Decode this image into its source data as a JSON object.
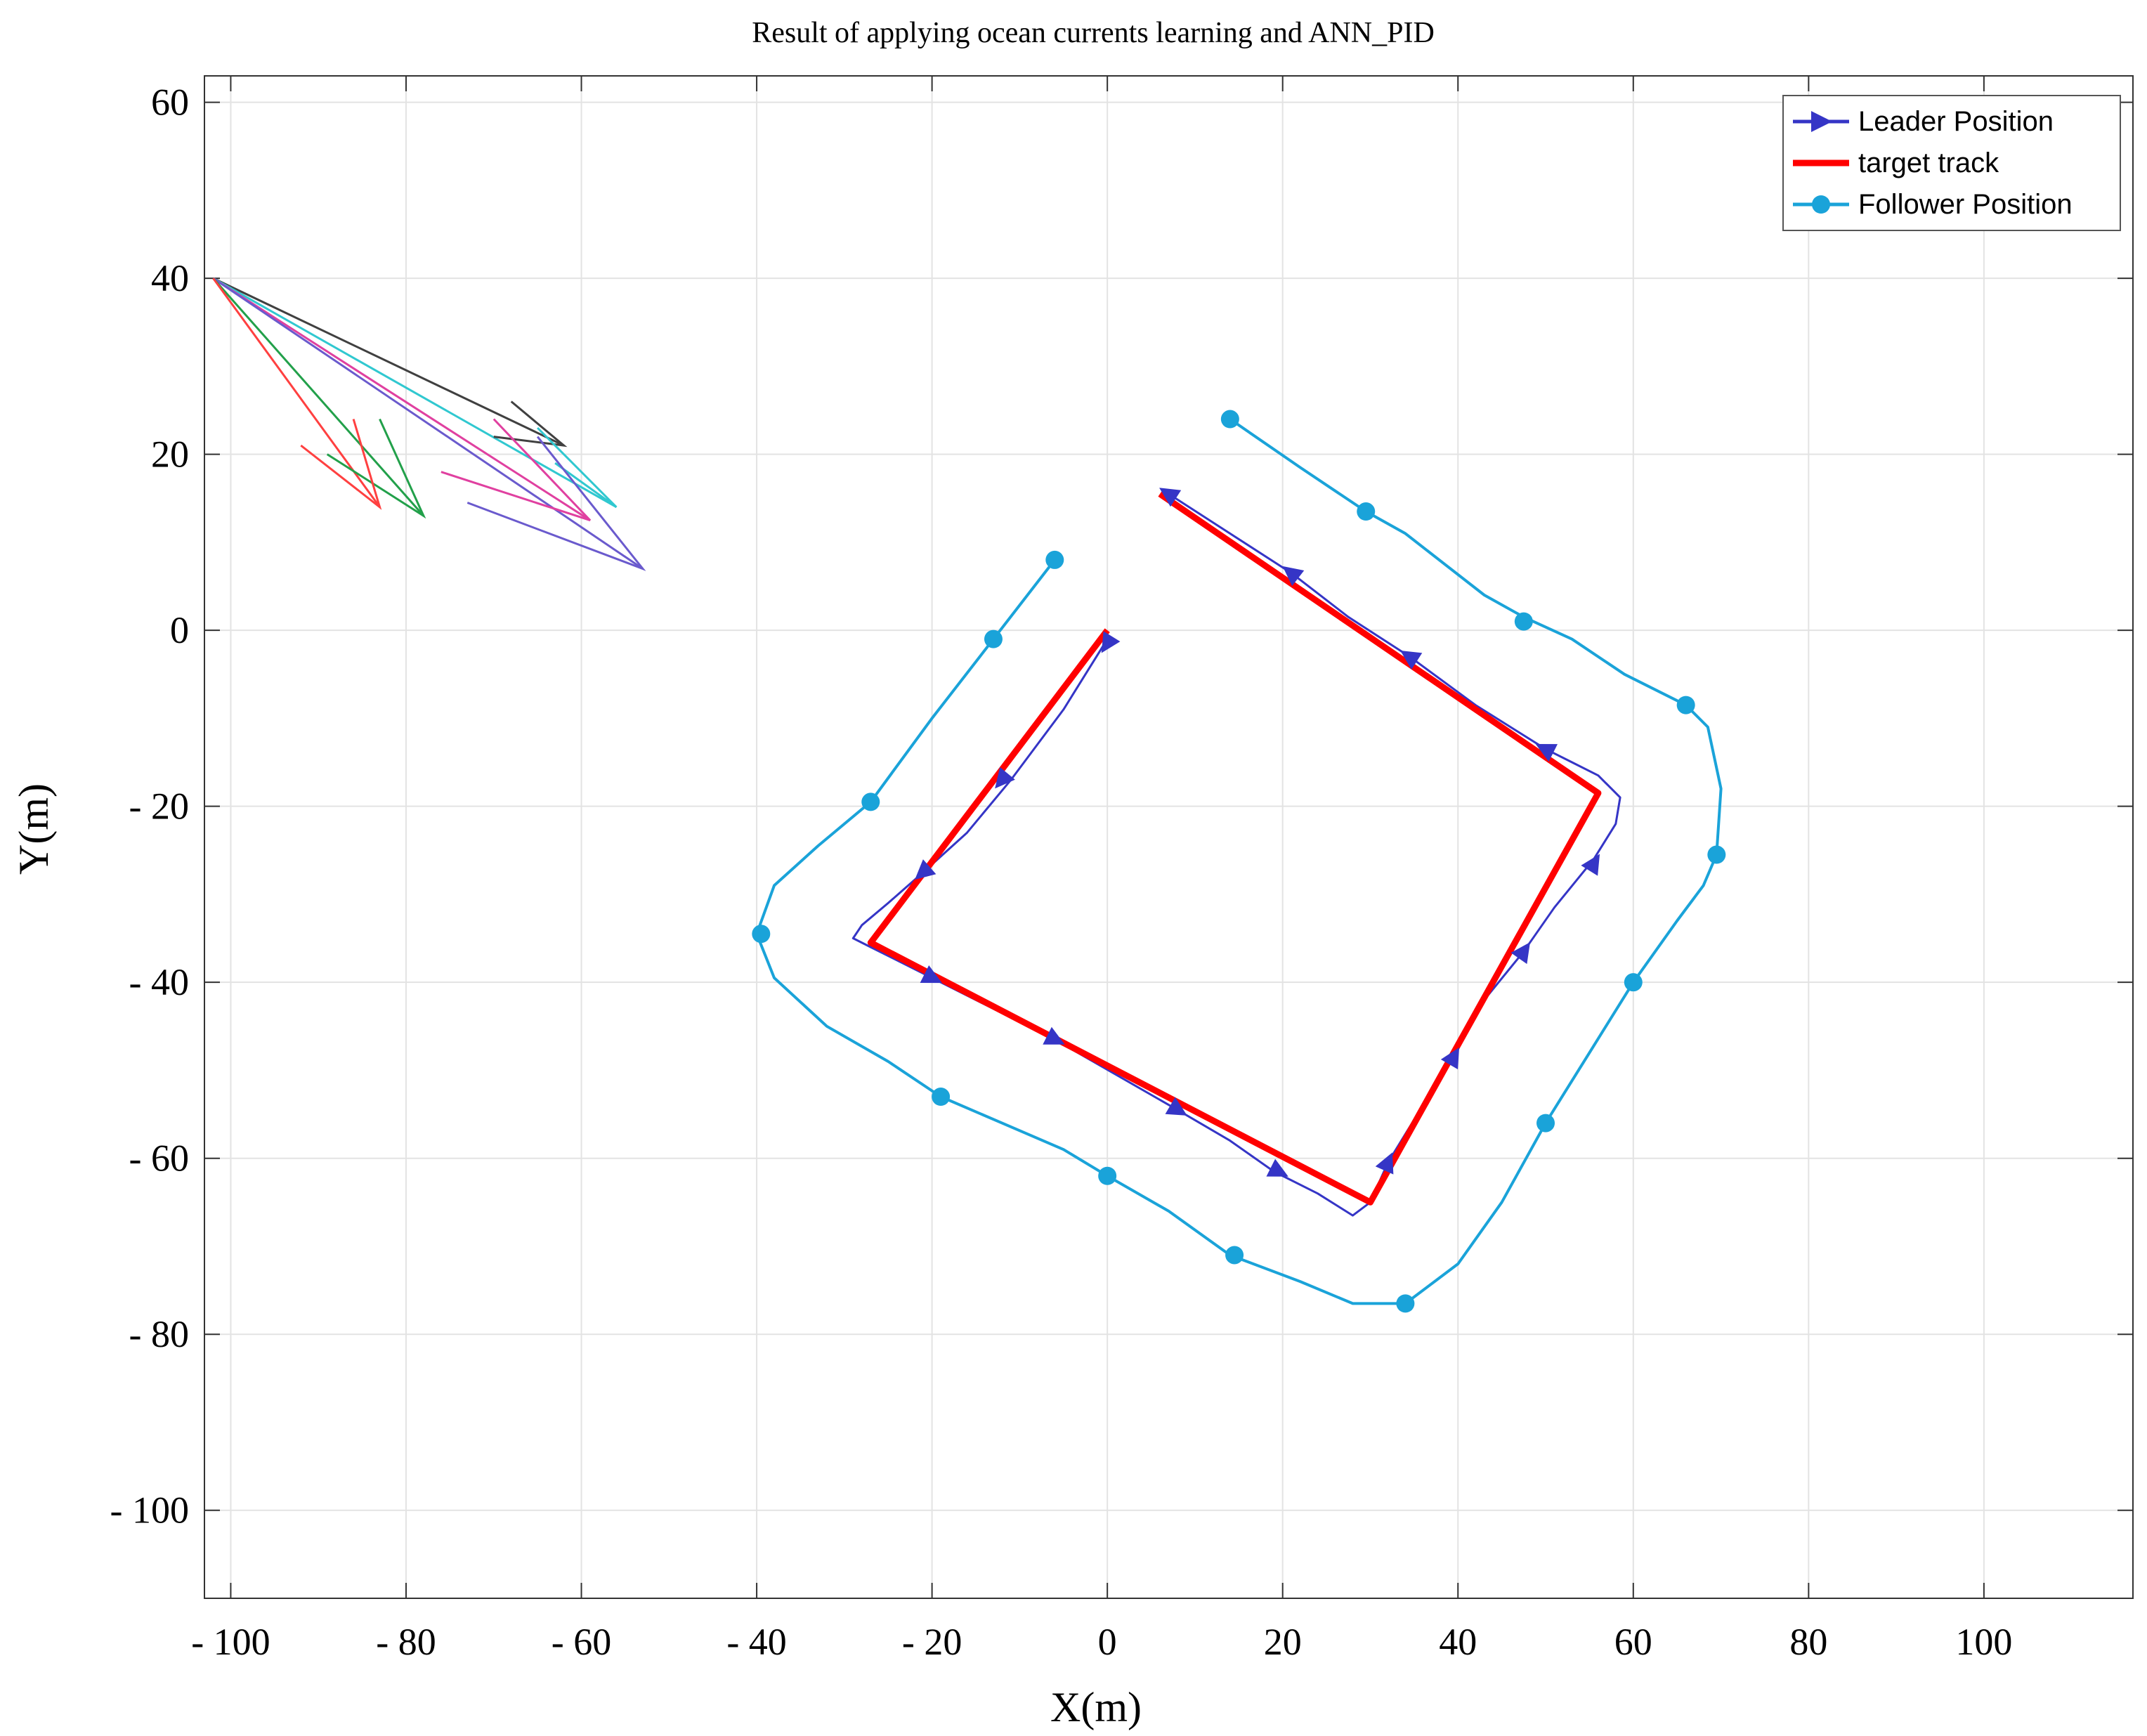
{
  "chart_data": {
    "type": "line",
    "title": "Result of applying ocean currents  learning and ANN_PID",
    "xlabel": "X(m)",
    "ylabel": "Y(m)",
    "xlim": [
      -103,
      117
    ],
    "ylim": [
      -110,
      63
    ],
    "grid": true,
    "legend_position": "top-right",
    "xticks": [
      -100,
      -80,
      -60,
      -40,
      -20,
      0,
      20,
      40,
      60,
      80,
      100
    ],
    "xtick_labels": [
      "- 100",
      "- 80",
      "- 60",
      "- 40",
      "- 20",
      "0",
      "20",
      "40",
      "60",
      "80",
      "100"
    ],
    "yticks": [
      60,
      40,
      20,
      0,
      -20,
      -40,
      -60,
      -80,
      -100
    ],
    "ytick_labels": [
      "60",
      "40",
      "20",
      "0",
      "- 20",
      "- 40",
      "- 60",
      "- 80",
      "- 100"
    ],
    "series": [
      {
        "name": "Leader Position",
        "color": "#3535c6",
        "marker": "triangle-right",
        "line": [
          [
            0,
            -1
          ],
          [
            -5,
            -9
          ],
          [
            -11,
            -17
          ],
          [
            -16,
            -23
          ],
          [
            -21,
            -27.5
          ],
          [
            -25,
            -31
          ],
          [
            -28,
            -33.5
          ],
          [
            -29,
            -35
          ],
          [
            -27,
            -36
          ],
          [
            -20,
            -39.5
          ],
          [
            -13,
            -43
          ],
          [
            -6,
            -46.5
          ],
          [
            1,
            -50.5
          ],
          [
            8,
            -54.5
          ],
          [
            14,
            -58
          ],
          [
            19,
            -61.5
          ],
          [
            24,
            -64
          ],
          [
            28,
            -66.5
          ],
          [
            30,
            -65
          ],
          [
            32,
            -60.5
          ],
          [
            36,
            -54
          ],
          [
            39.5,
            -48
          ],
          [
            43,
            -42
          ],
          [
            47.5,
            -36.5
          ],
          [
            51,
            -31.5
          ],
          [
            55.5,
            -26
          ],
          [
            58,
            -22
          ],
          [
            58.5,
            -19
          ],
          [
            56,
            -16.5
          ],
          [
            53,
            -15
          ],
          [
            50,
            -13.5
          ],
          [
            42,
            -8.5
          ],
          [
            34.5,
            -3
          ],
          [
            27.5,
            1.5
          ],
          [
            21,
            6.5
          ],
          [
            14,
            11
          ],
          [
            7,
            15.5
          ]
        ],
        "markers": [
          [
            0,
            -1.5
          ],
          [
            -12,
            -17
          ],
          [
            -21,
            -27.5
          ],
          [
            -20,
            -39.5
          ],
          [
            -6,
            -46.5
          ],
          [
            8,
            -54.5
          ],
          [
            19.5,
            -61.5
          ],
          [
            32,
            -60.5
          ],
          [
            39.5,
            -48.5
          ],
          [
            47.5,
            -36.5
          ],
          [
            55.5,
            -26.5
          ],
          [
            50,
            -13.5
          ],
          [
            34.5,
            -3
          ],
          [
            21,
            6.5
          ],
          [
            7,
            15.5
          ]
        ]
      },
      {
        "name": "target track",
        "color": "#ff0000",
        "line": [
          [
            0,
            0
          ],
          [
            -27,
            -35.5
          ],
          [
            30,
            -65
          ],
          [
            56,
            -18.5
          ],
          [
            6,
            15.5
          ]
        ]
      },
      {
        "name": "Follower Position",
        "color": "#1aa3d9",
        "marker": "circle",
        "line": [
          [
            -6,
            8
          ],
          [
            -13,
            -1
          ],
          [
            -20,
            -10
          ],
          [
            -27,
            -19.5
          ],
          [
            -33,
            -24.5
          ],
          [
            -38,
            -29
          ],
          [
            -40,
            -34.5
          ],
          [
            -38,
            -39.5
          ],
          [
            -32,
            -45
          ],
          [
            -25,
            -49
          ],
          [
            -19,
            -53
          ],
          [
            -12,
            -56
          ],
          [
            -5,
            -59
          ],
          [
            0,
            -62
          ],
          [
            7,
            -66
          ],
          [
            14,
            -71
          ],
          [
            22,
            -74
          ],
          [
            28,
            -76.5
          ],
          [
            34,
            -76.5
          ],
          [
            40,
            -72
          ],
          [
            45,
            -65
          ],
          [
            50,
            -56
          ],
          [
            55,
            -48
          ],
          [
            60,
            -40
          ],
          [
            65,
            -33
          ],
          [
            68,
            -29
          ],
          [
            69.5,
            -25.5
          ],
          [
            70,
            -18
          ],
          [
            68.5,
            -11
          ],
          [
            66,
            -8.5
          ],
          [
            59,
            -5
          ],
          [
            53,
            -1
          ],
          [
            47.5,
            1.5
          ],
          [
            43,
            4
          ],
          [
            38.5,
            7.5
          ],
          [
            34,
            11
          ],
          [
            29.5,
            13.5
          ],
          [
            22,
            18.5
          ],
          [
            14,
            24
          ]
        ],
        "markers": [
          [
            -6,
            8
          ],
          [
            -13,
            -1
          ],
          [
            -27,
            -19.5
          ],
          [
            -39.5,
            -34.5
          ],
          [
            -19,
            -53
          ],
          [
            0,
            -62
          ],
          [
            14.5,
            -71
          ],
          [
            34,
            -76.5
          ],
          [
            50,
            -56
          ],
          [
            60,
            -40
          ],
          [
            69.5,
            -25.5
          ],
          [
            66,
            -8.5
          ],
          [
            47.5,
            1
          ],
          [
            29.5,
            13.5
          ],
          [
            14,
            24
          ]
        ]
      }
    ],
    "arrows": [
      {
        "color": "#404040",
        "from": [
          -102,
          40
        ],
        "to": [
          -62,
          21
        ]
      },
      {
        "color": "#30c8d0",
        "from": [
          -102,
          40
        ],
        "to": [
          -56,
          14
        ]
      },
      {
        "color": "#e040a0",
        "from": [
          -102,
          40
        ],
        "to": [
          -59,
          12.5
        ]
      },
      {
        "color": "#6a5acd",
        "from": [
          -102,
          40
        ],
        "to": [
          -53,
          7
        ]
      },
      {
        "color": "#22a04a",
        "from": [
          -102,
          40
        ],
        "to": [
          -78,
          13
        ]
      },
      {
        "color": "#ff4040",
        "from": [
          -102,
          40
        ],
        "to": [
          -83,
          14
        ]
      }
    ],
    "arrow_heads": [
      {
        "color": "#404040",
        "points": [
          [
            -68,
            26
          ],
          [
            -62,
            21
          ],
          [
            -70,
            22
          ]
        ]
      },
      {
        "color": "#30c8d0",
        "points": [
          [
            -65,
            23
          ],
          [
            -56,
            14
          ],
          [
            -63,
            19
          ]
        ]
      },
      {
        "color": "#e040a0",
        "points": [
          [
            -70,
            24
          ],
          [
            -59,
            12.5
          ],
          [
            -76,
            18
          ]
        ]
      },
      {
        "color": "#6a5acd",
        "points": [
          [
            -65,
            22
          ],
          [
            -53,
            7
          ],
          [
            -73,
            14.5
          ]
        ]
      },
      {
        "color": "#22a04a",
        "points": [
          [
            -83,
            24
          ],
          [
            -78,
            13
          ],
          [
            -89,
            20
          ]
        ]
      },
      {
        "color": "#ff4040",
        "points": [
          [
            -86,
            24
          ],
          [
            -83,
            14
          ],
          [
            -92,
            21
          ]
        ]
      }
    ]
  }
}
